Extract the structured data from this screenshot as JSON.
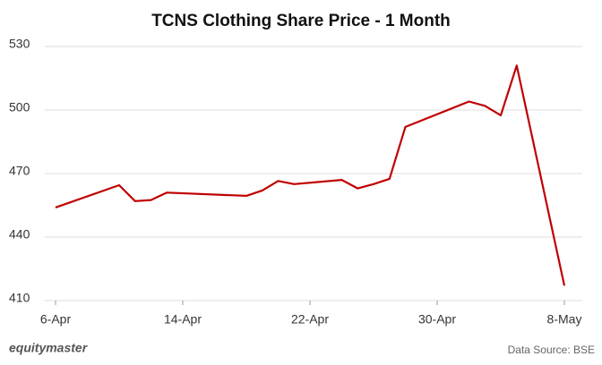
{
  "chart_data": {
    "type": "line",
    "title": "TCNS Clothing Share Price - 1 Month",
    "x": [
      "6-Apr",
      "10-Apr",
      "11-Apr",
      "12-Apr",
      "13-Apr",
      "18-Apr",
      "19-Apr",
      "20-Apr",
      "21-Apr",
      "24-Apr",
      "25-Apr",
      "26-Apr",
      "27-Apr",
      "28-Apr",
      "2-May",
      "3-May",
      "4-May",
      "5-May",
      "8-May"
    ],
    "series": [
      {
        "name": "TCNS Clothing",
        "color": "#c00000",
        "values": [
          454,
          464.5,
          457,
          457.5,
          461,
          459.5,
          462,
          466.5,
          465,
          467,
          463,
          465,
          467.5,
          492,
          504,
          502,
          497.5,
          521,
          417
        ]
      }
    ],
    "xlim": [
      "6-Apr",
      "8-May"
    ],
    "xticks": [
      "6-Apr",
      "14-Apr",
      "22-Apr",
      "30-Apr",
      "8-May"
    ],
    "ylim": [
      410,
      530
    ],
    "yticks": [
      410,
      440,
      470,
      500,
      530
    ],
    "grid": true,
    "source": "Data Source: BSE",
    "brand": "equitymaster"
  }
}
